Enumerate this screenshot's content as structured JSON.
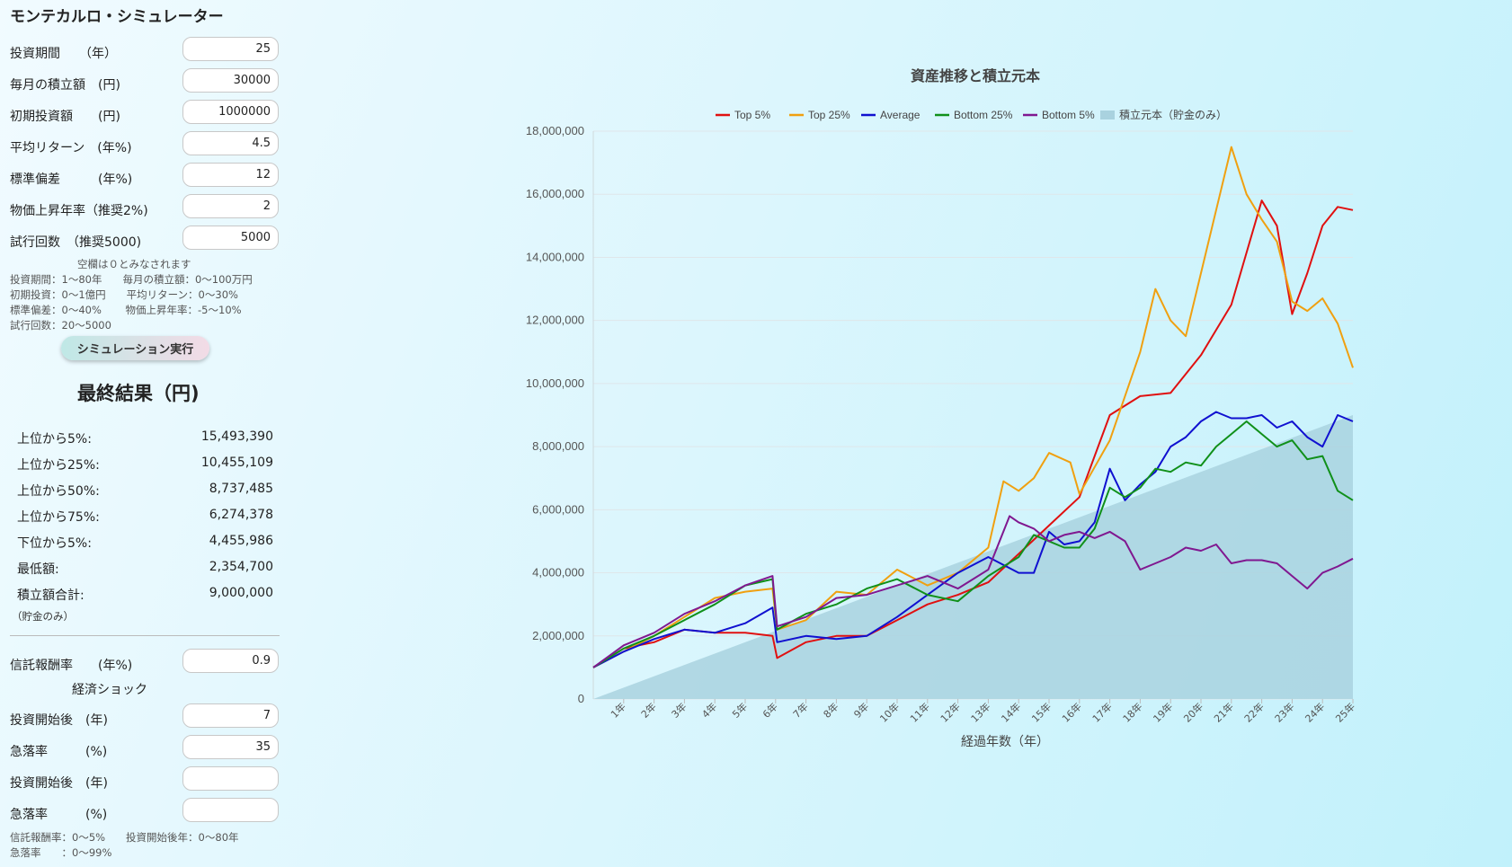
{
  "app": {
    "title": "モンテカルロ・シミュレーター"
  },
  "inputs": [
    {
      "label": "投資期間　　（年）",
      "value": "25"
    },
    {
      "label": "毎月の積立額　(円)",
      "value": "30000"
    },
    {
      "label": "初期投資額　　(円)",
      "value": "1000000"
    },
    {
      "label": "平均リターン　(年%)",
      "value": "4.5"
    },
    {
      "label": "標準偏差　　　(年%)",
      "value": "12"
    },
    {
      "label": "物価上昇年率（推奨2%)",
      "value": "2"
    },
    {
      "label": "試行回数　（推奨5000)",
      "value": "5000"
    }
  ],
  "hints": {
    "blank": "空欄は０とみなされます",
    "line1": "投資期間：1～80年　　毎月の積立額：0～100万円",
    "line2": "初期投資：0～1億円　　平均リターン：0～30%",
    "line3": "標準偏差：0～40%　　 物価上昇年率：-5～10%",
    "line4": "試行回数：20～5000"
  },
  "run_button": "シミュレーション実行",
  "results": {
    "title": "最終結果（円)",
    "rows": [
      {
        "label": "上位から5%:",
        "value": "15,493,390"
      },
      {
        "label": "上位から25%:",
        "value": "10,455,109"
      },
      {
        "label": "上位から50%:",
        "value": "8,737,485"
      },
      {
        "label": "上位から75%:",
        "value": "6,274,378"
      },
      {
        "label": "下位から5%:",
        "value": "4,455,986"
      },
      {
        "label": "最低額:",
        "value": "2,354,700"
      },
      {
        "label": "積立額合計:",
        "value": "9,000,000"
      }
    ],
    "note": "（貯金のみ）"
  },
  "fees": {
    "trust_fee": {
      "label": "信託報酬率　　(年%)",
      "value": "0.9"
    },
    "shock_title": "経済ショック",
    "shock1_year": {
      "label": "投資開始後　(年)",
      "value": "7"
    },
    "shock1_drop": {
      "label": "急落率　　　(%)",
      "value": "35"
    },
    "shock2_year": {
      "label": "投資開始後　(年)",
      "value": ""
    },
    "shock2_drop": {
      "label": "急落率　　　(%)",
      "value": ""
    },
    "hint1": "信託報酬率：0～5%　　投資開始後年：0～80年",
    "hint2": "急落率　　：0～99%"
  },
  "chart_data": {
    "type": "line",
    "title": "資産推移と積立元本",
    "xlabel": "経過年数（年）",
    "ylabel": "",
    "ylim": [
      0,
      18000000
    ],
    "yticks": [
      "0",
      "2,000,000",
      "4,000,000",
      "6,000,000",
      "8,000,000",
      "10,000,000",
      "12,000,000",
      "14,000,000",
      "16,000,000",
      "18,000,000"
    ],
    "x_categories": [
      "1年",
      "2年",
      "3年",
      "4年",
      "5年",
      "6年",
      "7年",
      "8年",
      "9年",
      "10年",
      "11年",
      "12年",
      "13年",
      "14年",
      "15年",
      "16年",
      "17年",
      "18年",
      "19年",
      "20年",
      "21年",
      "22年",
      "23年",
      "24年",
      "25年"
    ],
    "grid": true,
    "legend_position": "top",
    "series": [
      {
        "name": "Top 5%",
        "color": "#e01010",
        "x": [
          0,
          1,
          2,
          3,
          4,
          5,
          5.9,
          6.05,
          7,
          8,
          9,
          10,
          11,
          12,
          13,
          14,
          15,
          16,
          17,
          18,
          19,
          20,
          21,
          22,
          22.5,
          23,
          23.5,
          24,
          24.5,
          25
        ],
        "values": [
          1000000,
          1600000,
          1800000,
          2200000,
          2100000,
          2100000,
          2000000,
          1300000,
          1800000,
          2000000,
          2000000,
          2500000,
          3000000,
          3300000,
          3700000,
          4600000,
          5500000,
          6400000,
          9000000,
          9600000,
          9700000,
          10900000,
          12500000,
          15800000,
          15000000,
          12200000,
          13500000,
          15000000,
          15600000,
          15500000
        ]
      },
      {
        "name": "Top 25%",
        "color": "#f0a010",
        "x": [
          0,
          1,
          2,
          3,
          4,
          5,
          5.9,
          6.05,
          7,
          8,
          9,
          10,
          11,
          12,
          13,
          13.5,
          14,
          14.5,
          15,
          15.7,
          16,
          17,
          18,
          18.5,
          19,
          19.5,
          20,
          20.5,
          21,
          21.5,
          22,
          22.5,
          23,
          23.5,
          24,
          24.5,
          25
        ],
        "values": [
          1000000,
          1500000,
          2000000,
          2600000,
          3200000,
          3400000,
          3500000,
          2200000,
          2500000,
          3400000,
          3300000,
          4100000,
          3600000,
          4000000,
          4800000,
          6900000,
          6600000,
          7000000,
          7800000,
          7500000,
          6500000,
          8200000,
          11000000,
          13000000,
          12000000,
          11500000,
          13500000,
          15500000,
          17500000,
          16000000,
          15200000,
          14500000,
          12600000,
          12300000,
          12700000,
          11900000,
          10500000
        ]
      },
      {
        "name": "Average",
        "color": "#1010d0",
        "x": [
          0,
          1,
          2,
          3,
          4,
          5,
          5.9,
          6.05,
          7,
          8,
          9,
          10,
          11,
          12,
          13,
          14,
          14.5,
          15,
          15.5,
          16,
          16.5,
          17,
          17.5,
          18,
          18.5,
          19,
          19.5,
          20,
          20.5,
          21,
          21.5,
          22,
          22.5,
          23,
          23.5,
          24,
          24.5,
          25
        ],
        "values": [
          1000000,
          1500000,
          1900000,
          2200000,
          2100000,
          2400000,
          2900000,
          1800000,
          2000000,
          1900000,
          2000000,
          2600000,
          3300000,
          4000000,
          4500000,
          4000000,
          4000000,
          5300000,
          4900000,
          5000000,
          5600000,
          7300000,
          6300000,
          6800000,
          7200000,
          8000000,
          8300000,
          8800000,
          9100000,
          8900000,
          8900000,
          9000000,
          8600000,
          8800000,
          8300000,
          8000000,
          9000000,
          8800000
        ]
      },
      {
        "name": "Bottom 25%",
        "color": "#10901a",
        "x": [
          0,
          1,
          2,
          3,
          4,
          5,
          5.9,
          6.05,
          7,
          8,
          9,
          10,
          11,
          12,
          13,
          13.5,
          14,
          14.5,
          15,
          15.5,
          16,
          16.5,
          17,
          17.5,
          18,
          18.5,
          19,
          19.5,
          20,
          20.5,
          21,
          21.5,
          22,
          22.5,
          23,
          23.5,
          24,
          24.5,
          25
        ],
        "values": [
          1000000,
          1600000,
          2000000,
          2500000,
          3000000,
          3600000,
          3800000,
          2200000,
          2700000,
          3000000,
          3500000,
          3800000,
          3300000,
          3100000,
          3900000,
          4200000,
          4500000,
          5200000,
          5000000,
          4800000,
          4800000,
          5400000,
          6700000,
          6400000,
          6700000,
          7300000,
          7200000,
          7500000,
          7400000,
          8000000,
          8400000,
          8800000,
          8400000,
          8000000,
          8200000,
          7600000,
          7700000,
          6600000,
          6300000
        ]
      },
      {
        "name": "Bottom 5%",
        "color": "#801890",
        "x": [
          0,
          1,
          2,
          3,
          4,
          5,
          5.9,
          6.05,
          7,
          8,
          9,
          10,
          11,
          12,
          13,
          13.7,
          14,
          14.5,
          15,
          15.5,
          16,
          16.5,
          17,
          17.5,
          18,
          18.5,
          19,
          19.5,
          20,
          20.5,
          21,
          21.5,
          22,
          22.5,
          23,
          23.5,
          24,
          24.5,
          25
        ],
        "values": [
          1000000,
          1700000,
          2100000,
          2700000,
          3100000,
          3600000,
          3900000,
          2300000,
          2600000,
          3200000,
          3300000,
          3600000,
          3900000,
          3500000,
          4100000,
          5800000,
          5600000,
          5400000,
          5000000,
          5200000,
          5300000,
          5100000,
          5300000,
          5000000,
          4100000,
          4300000,
          4500000,
          4800000,
          4700000,
          4900000,
          4300000,
          4400000,
          4400000,
          4300000,
          3900000,
          3500000,
          4000000,
          4200000,
          4450000
        ]
      },
      {
        "name": "積立元本（貯金のみ）",
        "color": "#a9d2df",
        "kind": "area",
        "x": [
          0,
          25
        ],
        "values": [
          0,
          9000000
        ]
      }
    ]
  }
}
